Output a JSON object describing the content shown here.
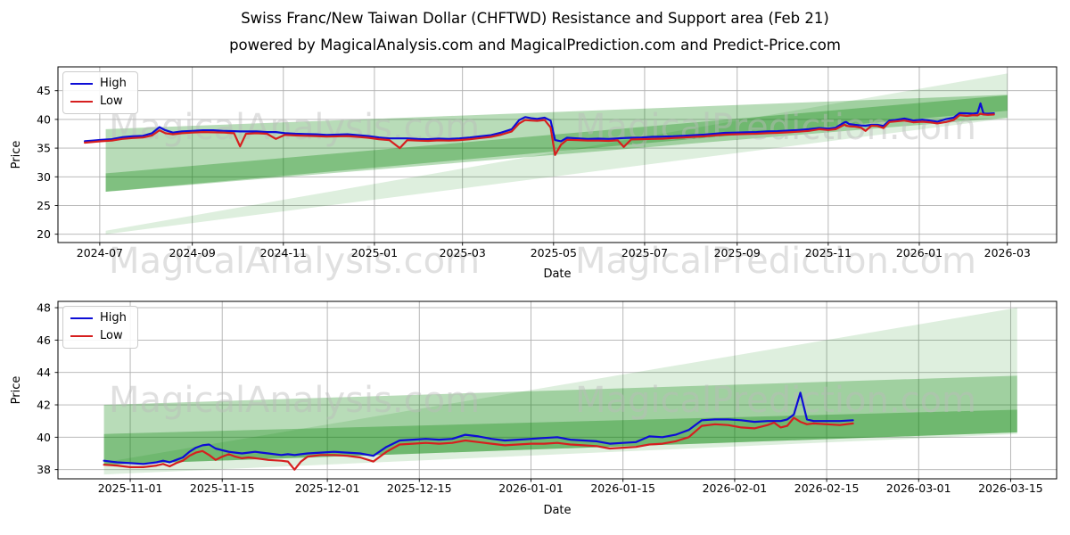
{
  "header": {
    "title": "Swiss Franc/New Taiwan Dollar (CHFTWD) Resistance and Support area (Feb 21)",
    "subtitle": "powered by MagicalAnalysis.com and MagicalPrediction.com and Predict-Price.com"
  },
  "watermarks": {
    "left": "MagicalAnalysis.com",
    "right": "MagicalPrediction.com"
  },
  "colors": {
    "high": "#0d0dd6",
    "low": "#d61f1f",
    "band_green": "#008000",
    "grid": "#b0b0b0",
    "spine": "#000000",
    "tick_text": "#000000",
    "watermark": "#bbbbbb",
    "background": "#ffffff"
  },
  "chart_data": [
    {
      "type": "line",
      "name": "price-history-full",
      "xlabel": "Date",
      "ylabel": "Price",
      "series_names": [
        "High",
        "Low"
      ],
      "legend_position": "upper-left",
      "grid": true,
      "xlim": [
        "2024-06-03",
        "2026-04-03"
      ],
      "ylim": [
        18.55,
        49.15
      ],
      "y_ticks": [
        20,
        25,
        30,
        35,
        40,
        45
      ],
      "x_ticks": [
        {
          "label": "2024-07",
          "date": "2024-07-01"
        },
        {
          "label": "2024-09",
          "date": "2024-09-01"
        },
        {
          "label": "2024-11",
          "date": "2024-11-01"
        },
        {
          "label": "2025-01",
          "date": "2025-01-01"
        },
        {
          "label": "2025-03",
          "date": "2025-03-01"
        },
        {
          "label": "2025-05",
          "date": "2025-05-01"
        },
        {
          "label": "2025-07",
          "date": "2025-07-01"
        },
        {
          "label": "2025-09",
          "date": "2025-09-01"
        },
        {
          "label": "2025-11",
          "date": "2025-11-01"
        },
        {
          "label": "2026-01",
          "date": "2026-01-01"
        },
        {
          "label": "2026-03",
          "date": "2026-03-01"
        }
      ],
      "bands": [
        {
          "x0": "2024-07-05",
          "x1": "2026-03-01",
          "y0": [
            20.0,
            20.6
          ],
          "y1": [
            40.2,
            48.0
          ],
          "alpha": 0.13
        },
        {
          "x0": "2024-07-05",
          "x1": "2026-03-01",
          "y0": [
            27.4,
            38.3
          ],
          "y1": [
            40.3,
            44.3
          ],
          "alpha": 0.28
        },
        {
          "x0": "2024-07-05",
          "x1": "2026-03-01",
          "y0": [
            27.4,
            30.6
          ],
          "y1": [
            41.5,
            44.2
          ],
          "alpha": 0.3
        }
      ],
      "points": [
        [
          "2024-06-21",
          36.2,
          35.95
        ],
        [
          "2024-06-26",
          36.3,
          36.05
        ],
        [
          "2024-07-02",
          36.45,
          36.2
        ],
        [
          "2024-07-09",
          36.55,
          36.3
        ],
        [
          "2024-07-16",
          36.9,
          36.6
        ],
        [
          "2024-07-23",
          37.05,
          36.75
        ],
        [
          "2024-07-30",
          37.15,
          36.85
        ],
        [
          "2024-08-05",
          37.6,
          37.2
        ],
        [
          "2024-08-10",
          38.65,
          38.1
        ],
        [
          "2024-08-14",
          38.1,
          37.6
        ],
        [
          "2024-08-19",
          37.7,
          37.4
        ],
        [
          "2024-08-25",
          37.9,
          37.6
        ],
        [
          "2024-09-01",
          38.0,
          37.7
        ],
        [
          "2024-09-08",
          38.1,
          37.8
        ],
        [
          "2024-09-15",
          38.1,
          37.75
        ],
        [
          "2024-09-22",
          38.0,
          37.7
        ],
        [
          "2024-09-29",
          37.95,
          37.6
        ],
        [
          "2024-10-03",
          37.9,
          35.3
        ],
        [
          "2024-10-07",
          37.9,
          37.5
        ],
        [
          "2024-10-14",
          37.9,
          37.6
        ],
        [
          "2024-10-21",
          37.8,
          37.5
        ],
        [
          "2024-10-27",
          37.8,
          36.6
        ],
        [
          "2024-11-02",
          37.6,
          37.3
        ],
        [
          "2024-11-09",
          37.5,
          37.2
        ],
        [
          "2024-11-16",
          37.45,
          37.15
        ],
        [
          "2024-11-23",
          37.4,
          37.1
        ],
        [
          "2024-11-30",
          37.3,
          37.0
        ],
        [
          "2024-12-07",
          37.35,
          37.05
        ],
        [
          "2024-12-14",
          37.4,
          37.1
        ],
        [
          "2024-12-21",
          37.25,
          36.95
        ],
        [
          "2024-12-28",
          37.1,
          36.8
        ],
        [
          "2025-01-04",
          36.85,
          36.55
        ],
        [
          "2025-01-11",
          36.7,
          36.4
        ],
        [
          "2025-01-18",
          36.7,
          35.0
        ],
        [
          "2025-01-23",
          36.7,
          36.4
        ],
        [
          "2025-01-30",
          36.6,
          36.3
        ],
        [
          "2025-02-06",
          36.55,
          36.25
        ],
        [
          "2025-02-13",
          36.65,
          36.35
        ],
        [
          "2025-02-20",
          36.6,
          36.3
        ],
        [
          "2025-02-27",
          36.7,
          36.4
        ],
        [
          "2025-03-06",
          36.85,
          36.55
        ],
        [
          "2025-03-13",
          37.05,
          36.75
        ],
        [
          "2025-03-20",
          37.25,
          36.95
        ],
        [
          "2025-03-27",
          37.7,
          37.35
        ],
        [
          "2025-04-03",
          38.3,
          37.9
        ],
        [
          "2025-04-08",
          39.9,
          39.3
        ],
        [
          "2025-04-12",
          40.4,
          39.9
        ],
        [
          "2025-04-16",
          40.2,
          39.8
        ],
        [
          "2025-04-20",
          40.1,
          39.75
        ],
        [
          "2025-04-25",
          40.3,
          39.9
        ],
        [
          "2025-04-29",
          39.8,
          38.6
        ],
        [
          "2025-05-02",
          36.4,
          33.8
        ],
        [
          "2025-05-06",
          36.2,
          35.6
        ],
        [
          "2025-05-10",
          36.8,
          36.45
        ],
        [
          "2025-05-17",
          36.7,
          36.4
        ],
        [
          "2025-05-24",
          36.6,
          36.3
        ],
        [
          "2025-05-31",
          36.65,
          36.3
        ],
        [
          "2025-06-07",
          36.6,
          36.25
        ],
        [
          "2025-06-13",
          36.7,
          36.35
        ],
        [
          "2025-06-17",
          36.75,
          35.2
        ],
        [
          "2025-06-22",
          36.8,
          36.5
        ],
        [
          "2025-06-29",
          36.85,
          36.55
        ],
        [
          "2025-07-06",
          36.95,
          36.6
        ],
        [
          "2025-07-13",
          37.0,
          36.65
        ],
        [
          "2025-07-20",
          37.05,
          36.75
        ],
        [
          "2025-07-27",
          37.15,
          36.85
        ],
        [
          "2025-08-03",
          37.25,
          36.95
        ],
        [
          "2025-08-10",
          37.35,
          37.05
        ],
        [
          "2025-08-17",
          37.5,
          37.2
        ],
        [
          "2025-08-24",
          37.65,
          37.35
        ],
        [
          "2025-08-31",
          37.7,
          37.4
        ],
        [
          "2025-09-07",
          37.75,
          37.45
        ],
        [
          "2025-09-14",
          37.8,
          37.5
        ],
        [
          "2025-09-21",
          37.9,
          37.6
        ],
        [
          "2025-09-28",
          37.95,
          37.65
        ],
        [
          "2025-10-05",
          38.05,
          37.75
        ],
        [
          "2025-10-12",
          38.15,
          37.85
        ],
        [
          "2025-10-19",
          38.3,
          38.0
        ],
        [
          "2025-10-26",
          38.5,
          38.3
        ],
        [
          "2025-11-01",
          38.4,
          38.15
        ],
        [
          "2025-11-06",
          38.55,
          38.3
        ],
        [
          "2025-11-12",
          39.5,
          39.1
        ],
        [
          "2025-11-13",
          39.55,
          38.9
        ],
        [
          "2025-11-15",
          39.2,
          38.8
        ],
        [
          "2025-11-19",
          39.05,
          38.75
        ],
        [
          "2025-11-23",
          38.95,
          38.55
        ],
        [
          "2025-11-26",
          38.9,
          38.0
        ],
        [
          "2025-11-30",
          39.05,
          38.9
        ],
        [
          "2025-12-04",
          39.05,
          38.85
        ],
        [
          "2025-12-08",
          38.85,
          38.5
        ],
        [
          "2025-12-12",
          39.8,
          39.55
        ],
        [
          "2025-12-16",
          39.9,
          39.65
        ],
        [
          "2025-12-22",
          40.15,
          39.8
        ],
        [
          "2025-12-28",
          39.8,
          39.5
        ],
        [
          "2026-01-03",
          39.95,
          39.6
        ],
        [
          "2026-01-08",
          39.8,
          39.5
        ],
        [
          "2026-01-13",
          39.6,
          39.3
        ],
        [
          "2026-01-19",
          40.05,
          39.55
        ],
        [
          "2026-01-24",
          40.3,
          39.9
        ],
        [
          "2026-01-28",
          41.1,
          40.75
        ],
        [
          "2026-02-02",
          41.05,
          40.6
        ],
        [
          "2026-02-06",
          41.0,
          40.75
        ],
        [
          "2026-02-09",
          41.1,
          40.7
        ],
        [
          "2026-02-11",
          42.8,
          41.0
        ],
        [
          "2026-02-13",
          41.0,
          40.85
        ],
        [
          "2026-02-16",
          41.0,
          40.8
        ],
        [
          "2026-02-20",
          41.05,
          40.85
        ]
      ]
    },
    {
      "type": "line",
      "name": "price-history-recent",
      "xlabel": "Date",
      "ylabel": "Price",
      "series_names": [
        "High",
        "Low"
      ],
      "legend_position": "upper-left",
      "grid": true,
      "xlim": [
        "2025-10-21",
        "2026-03-22"
      ],
      "ylim": [
        37.43,
        48.39
      ],
      "y_ticks": [
        38,
        40,
        42,
        44,
        46,
        48
      ],
      "x_ticks": [
        {
          "label": "2025-11-01",
          "date": "2025-11-01"
        },
        {
          "label": "2025-11-15",
          "date": "2025-11-15"
        },
        {
          "label": "2025-12-01",
          "date": "2025-12-01"
        },
        {
          "label": "2025-12-15",
          "date": "2025-12-15"
        },
        {
          "label": "2026-01-01",
          "date": "2026-01-01"
        },
        {
          "label": "2026-01-15",
          "date": "2026-01-15"
        },
        {
          "label": "2026-02-01",
          "date": "2026-02-01"
        },
        {
          "label": "2026-02-15",
          "date": "2026-02-15"
        },
        {
          "label": "2026-03-01",
          "date": "2026-03-01"
        },
        {
          "label": "2026-03-15",
          "date": "2026-03-15"
        }
      ],
      "bands": [
        {
          "x0": "2025-10-28",
          "x1": "2026-03-16",
          "y0": [
            37.7,
            38.45
          ],
          "y1": [
            40.2,
            48.0
          ],
          "alpha": 0.13
        },
        {
          "x0": "2025-10-28",
          "x1": "2026-03-16",
          "y0": [
            38.3,
            42.0
          ],
          "y1": [
            40.3,
            43.8
          ],
          "alpha": 0.28
        },
        {
          "x0": "2025-10-28",
          "x1": "2026-03-16",
          "y0": [
            38.3,
            40.2
          ],
          "y1": [
            40.3,
            41.7
          ],
          "alpha": 0.3
        }
      ],
      "points": [
        [
          "2025-10-28",
          38.55,
          38.3
        ],
        [
          "2025-10-30",
          38.45,
          38.25
        ],
        [
          "2025-11-01",
          38.4,
          38.15
        ],
        [
          "2025-11-03",
          38.35,
          38.15
        ],
        [
          "2025-11-05",
          38.45,
          38.25
        ],
        [
          "2025-11-06",
          38.55,
          38.35
        ],
        [
          "2025-11-07",
          38.45,
          38.2
        ],
        [
          "2025-11-08",
          38.6,
          38.4
        ],
        [
          "2025-11-09",
          38.75,
          38.55
        ],
        [
          "2025-11-10",
          39.1,
          38.85
        ],
        [
          "2025-11-11",
          39.35,
          39.05
        ],
        [
          "2025-11-12",
          39.5,
          39.15
        ],
        [
          "2025-11-13",
          39.55,
          38.9
        ],
        [
          "2025-11-14",
          39.3,
          38.6
        ],
        [
          "2025-11-15",
          39.2,
          38.8
        ],
        [
          "2025-11-16",
          39.1,
          38.95
        ],
        [
          "2025-11-17",
          39.05,
          38.8
        ],
        [
          "2025-11-18",
          39.0,
          38.7
        ],
        [
          "2025-11-19",
          39.05,
          38.75
        ],
        [
          "2025-11-20",
          39.1,
          38.7
        ],
        [
          "2025-11-21",
          39.05,
          38.65
        ],
        [
          "2025-11-22",
          39.0,
          38.6
        ],
        [
          "2025-11-24",
          38.9,
          38.55
        ],
        [
          "2025-11-25",
          38.95,
          38.5
        ],
        [
          "2025-11-26",
          38.9,
          38.0
        ],
        [
          "2025-11-27",
          38.95,
          38.5
        ],
        [
          "2025-11-28",
          39.0,
          38.8
        ],
        [
          "2025-11-30",
          39.05,
          38.9
        ],
        [
          "2025-12-02",
          39.1,
          38.9
        ],
        [
          "2025-12-04",
          39.05,
          38.85
        ],
        [
          "2025-12-06",
          39.0,
          38.75
        ],
        [
          "2025-12-08",
          38.85,
          38.5
        ],
        [
          "2025-12-10",
          39.4,
          39.1
        ],
        [
          "2025-12-12",
          39.8,
          39.55
        ],
        [
          "2025-12-14",
          39.85,
          39.6
        ],
        [
          "2025-12-16",
          39.9,
          39.65
        ],
        [
          "2025-12-18",
          39.85,
          39.6
        ],
        [
          "2025-12-20",
          39.9,
          39.65
        ],
        [
          "2025-12-22",
          40.15,
          39.8
        ],
        [
          "2025-12-24",
          40.05,
          39.7
        ],
        [
          "2025-12-26",
          39.9,
          39.6
        ],
        [
          "2025-12-28",
          39.8,
          39.5
        ],
        [
          "2025-12-30",
          39.85,
          39.55
        ],
        [
          "2026-01-01",
          39.9,
          39.6
        ],
        [
          "2026-01-03",
          39.95,
          39.6
        ],
        [
          "2026-01-05",
          40.0,
          39.65
        ],
        [
          "2026-01-07",
          39.85,
          39.55
        ],
        [
          "2026-01-09",
          39.8,
          39.5
        ],
        [
          "2026-01-11",
          39.75,
          39.45
        ],
        [
          "2026-01-13",
          39.6,
          39.3
        ],
        [
          "2026-01-15",
          39.65,
          39.35
        ],
        [
          "2026-01-17",
          39.7,
          39.4
        ],
        [
          "2026-01-19",
          40.05,
          39.55
        ],
        [
          "2026-01-21",
          40.0,
          39.6
        ],
        [
          "2026-01-23",
          40.15,
          39.75
        ],
        [
          "2026-01-25",
          40.45,
          40.0
        ],
        [
          "2026-01-27",
          41.05,
          40.7
        ],
        [
          "2026-01-29",
          41.1,
          40.8
        ],
        [
          "2026-01-31",
          41.1,
          40.75
        ],
        [
          "2026-02-02",
          41.05,
          40.6
        ],
        [
          "2026-02-04",
          40.95,
          40.55
        ],
        [
          "2026-02-06",
          41.0,
          40.75
        ],
        [
          "2026-02-07",
          41.0,
          40.9
        ],
        [
          "2026-02-08",
          41.0,
          40.6
        ],
        [
          "2026-02-09",
          41.1,
          40.7
        ],
        [
          "2026-02-10",
          41.4,
          41.2
        ],
        [
          "2026-02-11",
          42.75,
          40.95
        ],
        [
          "2026-02-12",
          41.1,
          40.8
        ],
        [
          "2026-02-13",
          41.0,
          40.85
        ],
        [
          "2026-02-15",
          41.0,
          40.8
        ],
        [
          "2026-02-17",
          41.0,
          40.75
        ],
        [
          "2026-02-19",
          41.05,
          40.85
        ]
      ]
    }
  ]
}
